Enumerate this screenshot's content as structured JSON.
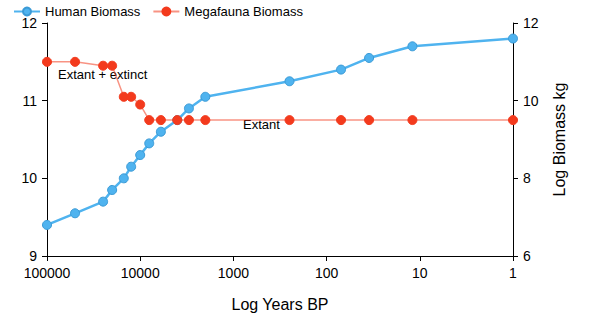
{
  "chart_data": {
    "type": "line",
    "x_label": "Log Years BP",
    "y2_label": "Log Biomass kg",
    "annotations": [
      "Extant + extinct",
      "Extant"
    ],
    "log": "x",
    "grid": false,
    "legend": "top",
    "x": [
      100000,
      50000,
      25000,
      20000,
      15000,
      12500,
      10000,
      8000,
      6000,
      4000,
      3000,
      2000,
      250,
      70,
      35,
      12,
      1
    ],
    "xlim": [
      100000,
      1
    ],
    "xticks": [
      100000,
      10000,
      1000,
      100,
      10,
      1
    ],
    "ylim": [
      9,
      12
    ],
    "yticks": [
      9,
      10,
      11,
      12
    ],
    "y2lim": [
      6,
      12
    ],
    "y2ticks": [
      6,
      8,
      10,
      12
    ],
    "series": [
      {
        "name": "Human Biomass",
        "color": "#4fb3ef",
        "marker": "circle",
        "line_style": "solid",
        "values": [
          9.4,
          9.55,
          9.7,
          9.85,
          10.0,
          10.15,
          10.3,
          10.45,
          10.6,
          10.75,
          10.9,
          11.05,
          11.25,
          11.4,
          11.55,
          11.7,
          11.8
        ]
      },
      {
        "name": "Megafauna Biomass",
        "color": "#f33a1d",
        "marker": "circle",
        "line_style": "solid",
        "axis": "y2",
        "values": [
          11.0,
          11.0,
          10.9,
          10.9,
          10.1,
          10.1,
          9.9,
          9.5,
          9.5,
          9.5,
          9.5,
          9.5,
          9.5,
          9.5,
          9.5,
          9.5,
          9.5
        ]
      }
    ]
  }
}
